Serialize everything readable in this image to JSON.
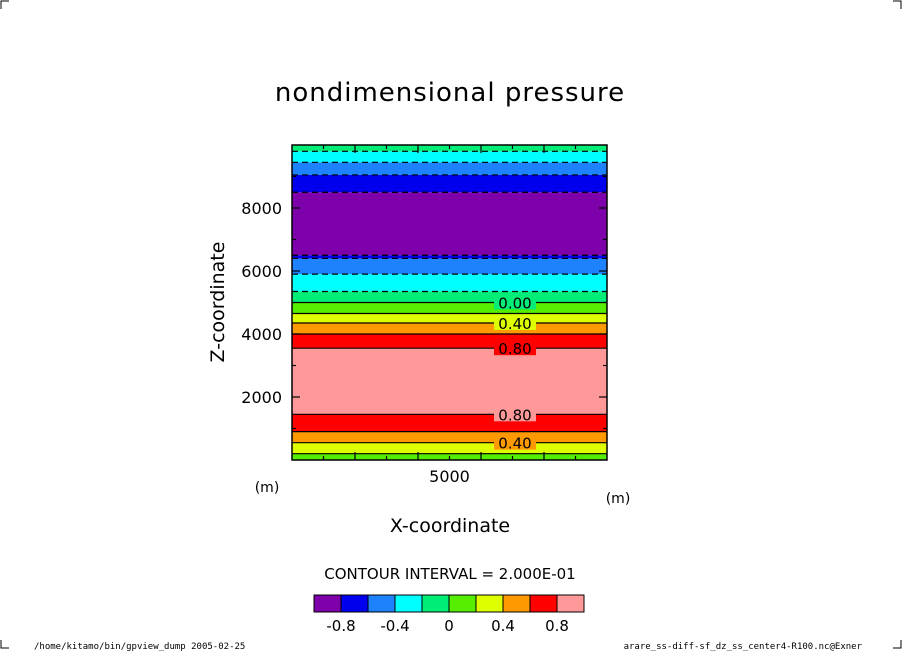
{
  "page": {
    "title": "nondimensional pressure",
    "contour_interval_text": "CONTOUR INTERVAL = 2.000E-01",
    "footer_left": "/home/kitamo/bin/gpview_dump  2005-02-25",
    "footer_right": "arare_ss-diff-sf_dz_ss_center4-R100.nc@Exner"
  },
  "chart_data": {
    "type": "heatmap",
    "title": "nondimensional pressure",
    "xlabel": "X-coordinate",
    "ylabel": "Z-coordinate",
    "x_unit": "(m)",
    "y_unit": "(m)",
    "xlim": [
      0,
      10000
    ],
    "ylim": [
      0,
      10000
    ],
    "x_ticks": [
      5000
    ],
    "y_ticks": [
      2000,
      4000,
      6000,
      8000
    ],
    "x_tick_labels": [
      "5000"
    ],
    "y_tick_labels": [
      "2000",
      "4000",
      "6000",
      "8000"
    ],
    "levels": [
      -1.0,
      -0.8,
      -0.6,
      -0.4,
      -0.2,
      0.0,
      0.2,
      0.4,
      0.6,
      0.8,
      1.0
    ],
    "colors": [
      "#7d00aa",
      "#0000ee",
      "#1e82ff",
      "#00ffff",
      "#00ee77",
      "#55ee00",
      "#ddff00",
      "#ff9900",
      "#ff0000",
      "#ff9999"
    ],
    "bands": [
      {
        "z0": 0,
        "z1": 200,
        "level": 5
      },
      {
        "z0": 200,
        "z1": 550,
        "level": 6
      },
      {
        "z0": 550,
        "z1": 900,
        "level": 7
      },
      {
        "z0": 900,
        "z1": 1450,
        "level": 8
      },
      {
        "z0": 1450,
        "z1": 3550,
        "level": 9
      },
      {
        "z0": 3550,
        "z1": 4000,
        "level": 8
      },
      {
        "z0": 4000,
        "z1": 4350,
        "level": 7
      },
      {
        "z0": 4350,
        "z1": 4650,
        "level": 6
      },
      {
        "z0": 4650,
        "z1": 5000,
        "level": 5
      },
      {
        "z0": 5000,
        "z1": 5350,
        "level": 4
      },
      {
        "z0": 5350,
        "z1": 5900,
        "level": 3
      },
      {
        "z0": 5900,
        "z1": 6400,
        "level": 2
      },
      {
        "z0": 6400,
        "z1": 6500,
        "level": 1
      },
      {
        "z0": 6500,
        "z1": 8500,
        "level": 0
      },
      {
        "z0": 8500,
        "z1": 9050,
        "level": 1
      },
      {
        "z0": 9050,
        "z1": 9450,
        "level": 2
      },
      {
        "z0": 9450,
        "z1": 9800,
        "level": 3
      },
      {
        "z0": 9800,
        "z1": 10000,
        "level": 4
      }
    ],
    "contour_lines": [
      {
        "z": 200,
        "dashed": false
      },
      {
        "z": 550,
        "dashed": false,
        "label": "0.40"
      },
      {
        "z": 900,
        "dashed": false
      },
      {
        "z": 1450,
        "dashed": false,
        "label": "0.80"
      },
      {
        "z": 3550,
        "dashed": false,
        "label": "0.80"
      },
      {
        "z": 4000,
        "dashed": false
      },
      {
        "z": 4350,
        "dashed": false,
        "label": "0.40"
      },
      {
        "z": 4650,
        "dashed": false
      },
      {
        "z": 5000,
        "dashed": false,
        "label": "0.00"
      },
      {
        "z": 5350,
        "dashed": true
      },
      {
        "z": 5900,
        "dashed": true
      },
      {
        "z": 6400,
        "dashed": true
      },
      {
        "z": 6500,
        "dashed": true
      },
      {
        "z": 8500,
        "dashed": true
      },
      {
        "z": 9050,
        "dashed": true
      },
      {
        "z": 9450,
        "dashed": true
      },
      {
        "z": 9800,
        "dashed": true
      }
    ],
    "colorbar_labels": [
      {
        "level_index": 1,
        "text": "-0.8"
      },
      {
        "level_index": 3,
        "text": "-0.4"
      },
      {
        "level_index": 5,
        "text": "0"
      },
      {
        "level_index": 7,
        "text": "0.4"
      },
      {
        "level_index": 9,
        "text": "0.8"
      }
    ]
  }
}
